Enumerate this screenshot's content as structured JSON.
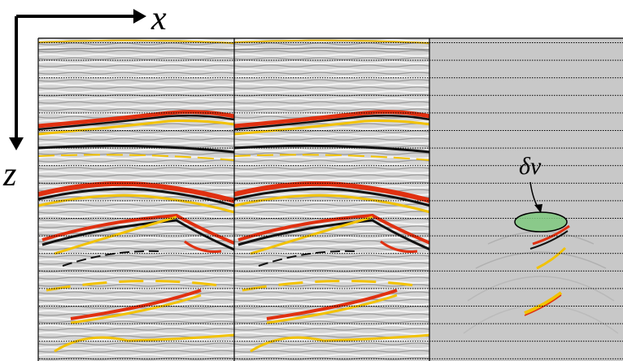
{
  "axes": {
    "x_label": "x",
    "z_label": "z"
  },
  "annotation": {
    "label": "δv"
  }
}
